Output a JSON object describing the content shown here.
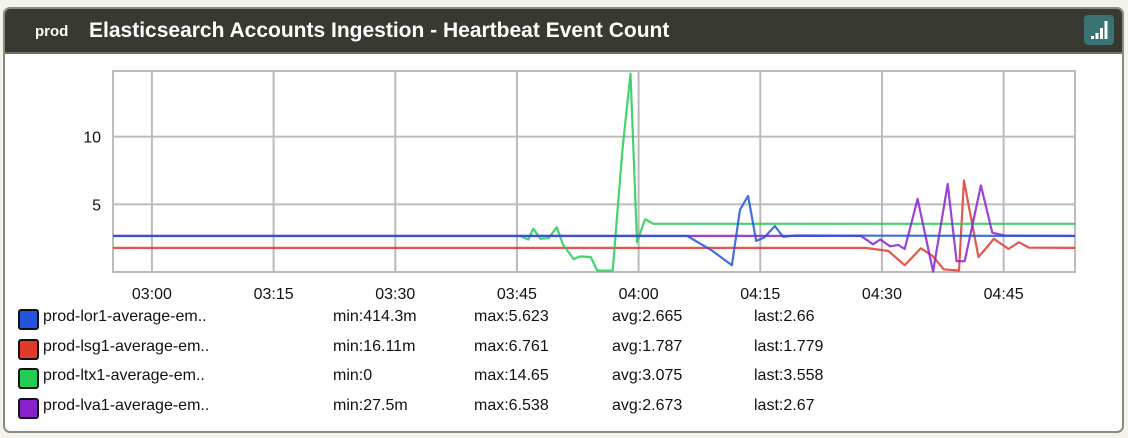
{
  "header": {
    "env": "prod",
    "title": "Elasticsearch Accounts Ingestion - Heartbeat Event Count",
    "icon": "bar-chart-signal-icon"
  },
  "chart_data": {
    "type": "line",
    "title": "Elasticsearch Accounts Ingestion - Heartbeat Event Count",
    "xlabel": "",
    "ylabel": "",
    "x_unit": "minutes of day",
    "xlim": [
      175.2,
      293.8
    ],
    "ylim": [
      0,
      14.85
    ],
    "grid": true,
    "x_ticks": [
      {
        "v": 180,
        "label": "03:00"
      },
      {
        "v": 195,
        "label": "03:15"
      },
      {
        "v": 210,
        "label": "03:30"
      },
      {
        "v": 225,
        "label": "03:45"
      },
      {
        "v": 240,
        "label": "04:00"
      },
      {
        "v": 255,
        "label": "04:15"
      },
      {
        "v": 270,
        "label": "04:30"
      },
      {
        "v": 285,
        "label": "04:45"
      }
    ],
    "y_ticks": [
      {
        "v": 5,
        "label": "5"
      },
      {
        "v": 10,
        "label": "10"
      }
    ],
    "legend_position": "bottom",
    "series": [
      {
        "name": "prod-lor1-average-em..",
        "color": "#2255dd",
        "min": "min:414.3m",
        "max": "max:5.623",
        "avg": "avg:2.665",
        "last": "last:2.66",
        "points": [
          [
            175.2,
            2.66
          ],
          [
            246,
            2.66
          ],
          [
            249,
            1.6
          ],
          [
            251.5,
            0.5
          ],
          [
            252.5,
            4.6
          ],
          [
            253.5,
            5.62
          ],
          [
            254.5,
            2.3
          ],
          [
            255.5,
            2.55
          ],
          [
            256.8,
            3.4
          ],
          [
            257.8,
            2.6
          ],
          [
            259.3,
            2.7
          ],
          [
            293.8,
            2.66
          ]
        ]
      },
      {
        "name": "prod-lsg1-average-em..",
        "color": "#e03a2e",
        "min": "min:16.11m",
        "max": "max:6.761",
        "avg": "avg:1.787",
        "last": "last:1.779",
        "points": [
          [
            175.2,
            1.78
          ],
          [
            268,
            1.78
          ],
          [
            270.8,
            1.55
          ],
          [
            272.8,
            0.5
          ],
          [
            274.8,
            1.75
          ],
          [
            276.3,
            1.15
          ],
          [
            277.6,
            0.2
          ],
          [
            279.5,
            0.1
          ],
          [
            280.1,
            6.76
          ],
          [
            281.9,
            1.1
          ],
          [
            283.8,
            2.45
          ],
          [
            285.6,
            1.7
          ],
          [
            286.9,
            2.2
          ],
          [
            288.1,
            1.8
          ],
          [
            293.8,
            1.78
          ]
        ]
      },
      {
        "name": "prod-ltx1-average-em..",
        "color": "#22cc55",
        "min": "min:0",
        "max": "max:14.65",
        "avg": "avg:3.075",
        "last": "last:3.558",
        "points": [
          [
            225.4,
            2.66
          ],
          [
            226.4,
            2.4
          ],
          [
            227.0,
            3.2
          ],
          [
            227.9,
            2.45
          ],
          [
            228.9,
            2.5
          ],
          [
            229.9,
            3.3
          ],
          [
            230.7,
            2.0
          ],
          [
            232.0,
            0.95
          ],
          [
            232.8,
            1.15
          ],
          [
            234.1,
            1.1
          ],
          [
            234.9,
            0.1
          ],
          [
            236.8,
            0.1
          ],
          [
            238.0,
            9.0
          ],
          [
            239.0,
            14.65
          ],
          [
            239.8,
            2.2
          ],
          [
            240.8,
            3.9
          ],
          [
            241.8,
            3.56
          ],
          [
            293.8,
            3.56
          ]
        ]
      },
      {
        "name": "prod-lva1-average-em..",
        "color": "#8a22cc",
        "min": "min:27.5m",
        "max": "max:6.538",
        "avg": "avg:2.673",
        "last": "last:2.67",
        "points": [
          [
            175.2,
            2.67
          ],
          [
            267.4,
            2.67
          ],
          [
            268.9,
            2.05
          ],
          [
            269.8,
            2.4
          ],
          [
            271.0,
            1.9
          ],
          [
            272.0,
            2.0
          ],
          [
            272.8,
            1.7
          ],
          [
            274.4,
            5.4
          ],
          [
            276.3,
            0.03
          ],
          [
            278.1,
            6.5
          ],
          [
            279.2,
            0.8
          ],
          [
            280.2,
            0.8
          ],
          [
            282.2,
            6.4
          ],
          [
            283.6,
            2.9
          ],
          [
            285.1,
            2.7
          ],
          [
            293.8,
            2.67
          ]
        ]
      }
    ]
  }
}
